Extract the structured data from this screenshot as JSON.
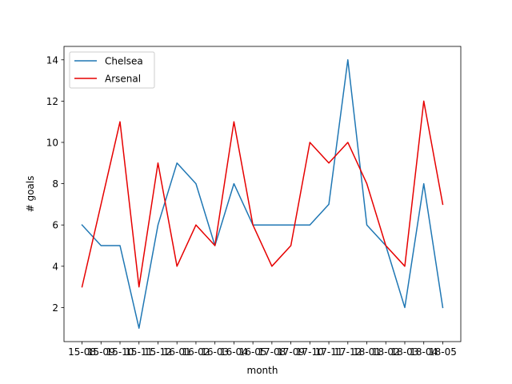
{
  "chart_data": {
    "type": "line",
    "xlabel": "month",
    "ylabel": "# goals",
    "categories": [
      "15-08",
      "15-09",
      "15-10",
      "15-11",
      "15-12",
      "16-01",
      "16-02",
      "16-03",
      "16-04",
      "16-05",
      "17-08",
      "17-09",
      "17-10",
      "17-11",
      "17-12",
      "18-01",
      "18-02",
      "18-03",
      "18-04",
      "18-05"
    ],
    "series": [
      {
        "name": "Chelsea",
        "color": "#1f77b4",
        "values": [
          6,
          5,
          5,
          1,
          6,
          9,
          8,
          5,
          8,
          6,
          6,
          6,
          6,
          7,
          14,
          6,
          5,
          2,
          8,
          2
        ]
      },
      {
        "name": "Arsenal",
        "color": "#e60000",
        "values": [
          3,
          7,
          11,
          3,
          9,
          4,
          6,
          5,
          11,
          6,
          4,
          5,
          10,
          9,
          10,
          8,
          5,
          4,
          12,
          7
        ]
      }
    ],
    "yticks": [
      2,
      4,
      6,
      8,
      10,
      12,
      14
    ],
    "ylim": [
      0.35,
      14.65
    ],
    "legend": "top-left",
    "grid": false
  }
}
